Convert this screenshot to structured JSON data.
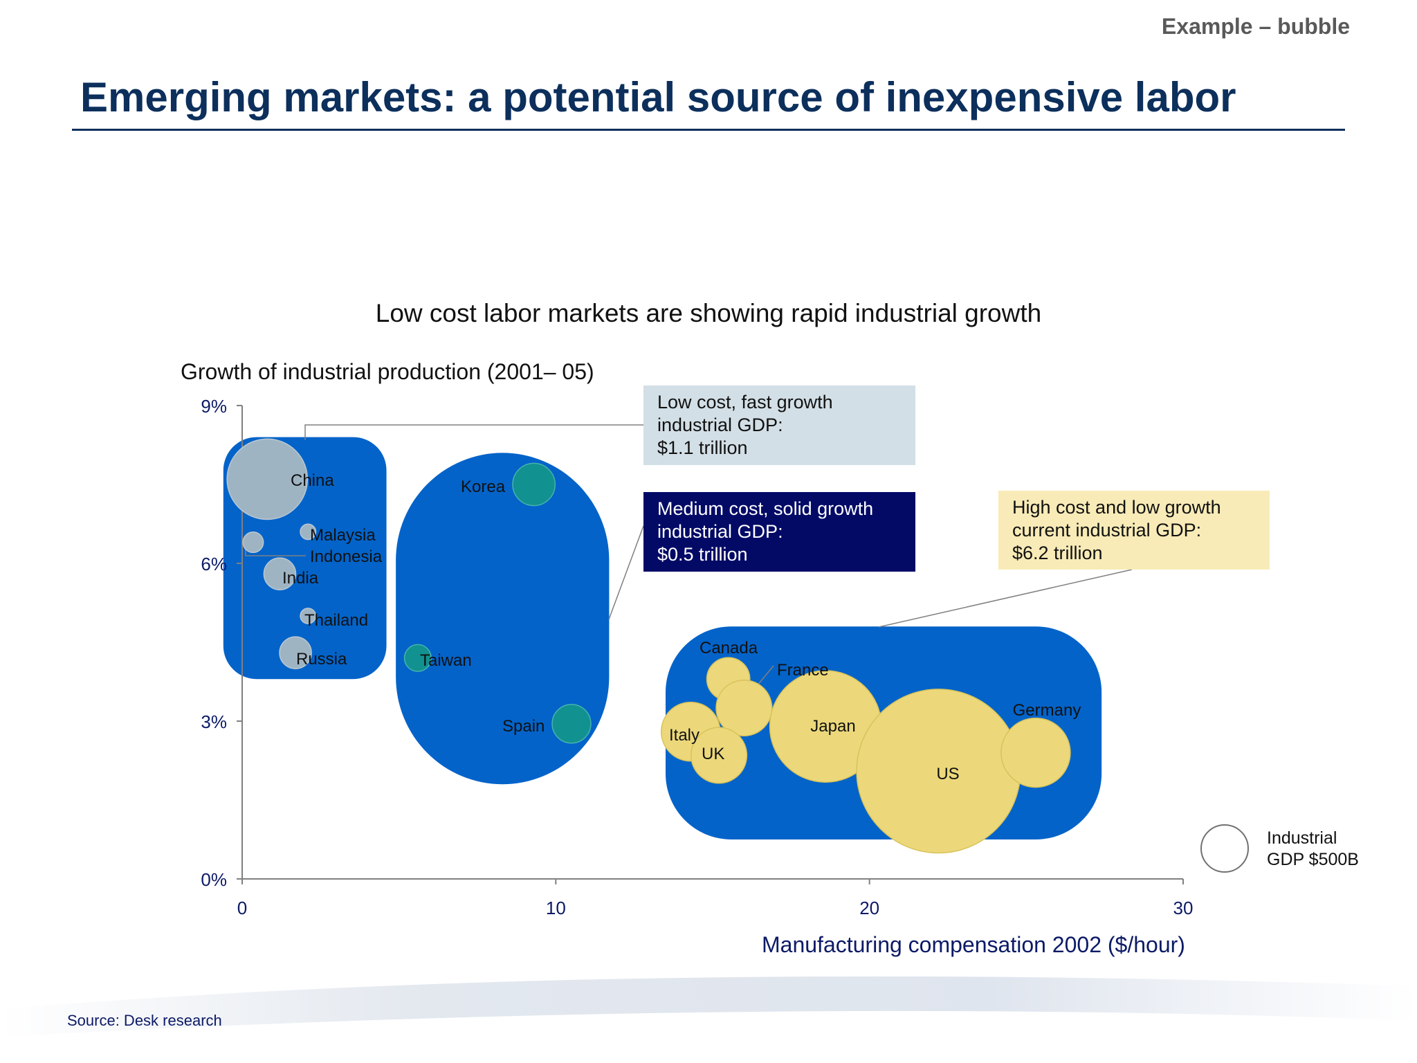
{
  "header": {
    "tag": "Example – bubble",
    "title": "Emerging markets: a potential source of inexpensive labor"
  },
  "callouts": {
    "low": "Low cost, fast growth\nindustrial GDP:\n$1.1 trillion",
    "medium": "Medium cost, solid growth\nindustrial GDP:\n$0.5 trillion",
    "high": "High cost and low growth\ncurrent industrial GDP:\n$6.2 trillion"
  },
  "legend": {
    "bubble_label": "Industrial\nGDP $500B"
  },
  "footer": {
    "source": "Source:  Desk research"
  },
  "colors": {
    "group_fill": "#0363c9",
    "low_cost_bubble": "#9fb4c3",
    "medium_cost_bubble": "#11918f",
    "high_cost_bubble": "#ecd87a",
    "title_navy": "#0c2f5c"
  },
  "chart_data": {
    "type": "scatter",
    "title": "Low cost labor markets are showing rapid industrial growth",
    "xlabel": "Manufacturing compensation 2002 ($/hour)",
    "ylabel": "Growth of industrial production (2001– 05)",
    "xlim": [
      0,
      30
    ],
    "ylim": [
      0,
      9
    ],
    "x_ticks": [
      "0",
      "10",
      "20",
      "30"
    ],
    "y_ticks": [
      "0%",
      "3%",
      "6%",
      "9%"
    ],
    "size_reference": "Industrial GDP $500B",
    "series": [
      {
        "name": "Low cost, fast growth",
        "points": [
          {
            "label": "China",
            "x": 0.8,
            "y": 7.6,
            "gdp_b": 540
          },
          {
            "label": "Malaysia",
            "x": 2.1,
            "y": 6.6,
            "gdp_b": 20
          },
          {
            "label": "Indonesia",
            "x": 0.35,
            "y": 6.4,
            "gdp_b": 35
          },
          {
            "label": "India",
            "x": 1.2,
            "y": 5.8,
            "gdp_b": 85
          },
          {
            "label": "Thailand",
            "x": 2.1,
            "y": 5.0,
            "gdp_b": 20
          },
          {
            "label": "Russia",
            "x": 1.7,
            "y": 4.3,
            "gdp_b": 85
          }
        ]
      },
      {
        "name": "Medium cost, solid growth",
        "points": [
          {
            "label": "Korea",
            "x": 9.3,
            "y": 7.5,
            "gdp_b": 150
          },
          {
            "label": "Taiwan",
            "x": 5.6,
            "y": 4.2,
            "gdp_b": 60
          },
          {
            "label": "Spain",
            "x": 10.5,
            "y": 2.95,
            "gdp_b": 125
          }
        ]
      },
      {
        "name": "High cost and low growth",
        "points": [
          {
            "label": "Canada",
            "x": 15.5,
            "y": 3.8,
            "gdp_b": 155
          },
          {
            "label": "France",
            "x": 16.0,
            "y": 3.25,
            "gdp_b": 260
          },
          {
            "label": "Italy",
            "x": 14.3,
            "y": 2.8,
            "gdp_b": 290
          },
          {
            "label": "UK",
            "x": 15.2,
            "y": 2.35,
            "gdp_b": 260
          },
          {
            "label": "Japan",
            "x": 18.6,
            "y": 2.9,
            "gdp_b": 1040
          },
          {
            "label": "US",
            "x": 22.2,
            "y": 2.05,
            "gdp_b": 2240
          },
          {
            "label": "Germany",
            "x": 25.3,
            "y": 2.4,
            "gdp_b": 400
          }
        ]
      }
    ],
    "groups": [
      {
        "name": "Low cost, fast growth",
        "x_range": [
          -0.6,
          4.6
        ],
        "y_range": [
          3.8,
          8.4
        ]
      },
      {
        "name": "Medium cost, solid growth",
        "x_range": [
          4.9,
          11.7
        ],
        "y_range": [
          1.8,
          8.1
        ]
      },
      {
        "name": "High cost and low growth",
        "x_range": [
          13.5,
          27.4
        ],
        "y_range": [
          0.75,
          4.8
        ]
      }
    ]
  }
}
